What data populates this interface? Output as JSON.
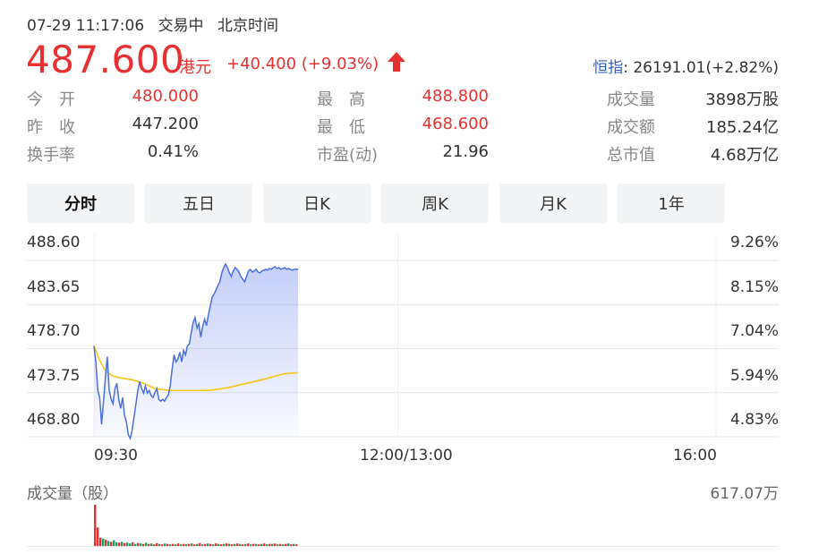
{
  "status": {
    "datetime": "07-29 11:17:06",
    "state": "交易中",
    "tz": "北京时间"
  },
  "quote": {
    "price": "487.600",
    "currency": "港元",
    "change": "+40.400 (+9.03%)",
    "direction": "up"
  },
  "index": {
    "name": "恒指",
    "value": ": 26191.01(+2.82%)"
  },
  "stats": {
    "open_label": "今　开",
    "open": "480.000",
    "prev_label": "昨　收",
    "prev": "447.200",
    "turnover_label": "换手率",
    "turnover": "0.41%",
    "high_label": "最　高",
    "high": "488.800",
    "low_label": "最　低",
    "low": "468.600",
    "pe_label": "市盈(动)",
    "pe": "21.96",
    "vol_label": "成交量",
    "vol": "3898万股",
    "amt_label": "成交额",
    "amt": "185.24亿",
    "cap_label": "总市值",
    "cap": "4.68万亿"
  },
  "tabs": [
    "分时",
    "五日",
    "日K",
    "周K",
    "月K",
    "1年"
  ],
  "active_tab": 0,
  "colors": {
    "up": "#e93030",
    "down": "#1a9e6a",
    "price_line": "#4a6fe0",
    "avg_line": "#f5c518"
  },
  "chart_data": {
    "type": "line",
    "title": "",
    "y_left_ticks": [
      "488.60",
      "483.65",
      "478.70",
      "473.75",
      "468.80"
    ],
    "y_right_ticks": [
      "9.26%",
      "8.15%",
      "7.04%",
      "5.94%",
      "4.83%"
    ],
    "x_ticks": [
      "09:30",
      "12:00/13:00",
      "16:00"
    ],
    "ylim": [
      468.8,
      488.6
    ],
    "session_minutes": 330,
    "series": [
      {
        "key": "price",
        "minutes": [
          0,
          1,
          2,
          3,
          4,
          5,
          6,
          7,
          8,
          9,
          10,
          11,
          12,
          13,
          14,
          15,
          16,
          17,
          18,
          19,
          20,
          21,
          22,
          23,
          24,
          25,
          26,
          27,
          28,
          29,
          30,
          31,
          32,
          33,
          34,
          35,
          36,
          37,
          38,
          39,
          40,
          41,
          42,
          43,
          44,
          45,
          46,
          47,
          48,
          49,
          50,
          51,
          52,
          53,
          54,
          55,
          56,
          57,
          58,
          59,
          60,
          61,
          62,
          63,
          64,
          65,
          66,
          67,
          68,
          69,
          70,
          71,
          72,
          73,
          74,
          75,
          76,
          77,
          78,
          79,
          80,
          81,
          82,
          83,
          84,
          85,
          86,
          87,
          88,
          89,
          90,
          91,
          92,
          93,
          94,
          95,
          96,
          97,
          98,
          99,
          100,
          101,
          102,
          103,
          104,
          105,
          106,
          107
        ],
        "values": [
          479.0,
          477.2,
          474.0,
          473.2,
          470.2,
          472.8,
          475.5,
          477.8,
          474.0,
          473.0,
          472.5,
          474.2,
          474.8,
          473.0,
          472.0,
          473.2,
          471.2,
          470.5,
          469.0,
          468.6,
          469.5,
          471.0,
          472.5,
          474.0,
          475.0,
          474.2,
          473.7,
          474.5,
          473.7,
          474.0,
          473.4,
          473.2,
          473.8,
          474.2,
          473.0,
          472.8,
          473.0,
          472.8,
          473.2,
          473.5,
          474.5,
          476.5,
          478.0,
          477.2,
          477.5,
          478.3,
          477.2,
          478.5,
          478.0,
          479.0,
          479.2,
          480.5,
          481.6,
          482.2,
          481.0,
          481.5,
          480.0,
          481.2,
          482.0,
          481.3,
          482.5,
          483.5,
          484.5,
          484.8,
          485.3,
          485.8,
          486.2,
          487.2,
          487.8,
          488.2,
          487.8,
          487.2,
          486.8,
          487.4,
          487.8,
          487.6,
          487.3,
          486.8,
          486.5,
          486.2,
          486.8,
          487.4,
          487.6,
          487.3,
          487.4,
          487.6,
          487.3,
          487.2,
          487.4,
          487.5,
          487.6,
          487.5,
          487.7,
          487.6,
          487.8,
          487.9,
          487.7,
          487.8,
          487.6,
          487.7,
          487.8,
          487.6,
          487.7,
          487.6,
          487.5,
          487.6,
          487.6,
          487.6
        ]
      },
      {
        "key": "avg",
        "minutes": [
          0,
          3,
          6,
          10,
          14,
          20,
          26,
          32,
          40,
          50,
          60,
          70,
          80,
          90,
          100,
          107
        ],
        "values": [
          479.0,
          477.4,
          476.2,
          475.6,
          475.4,
          475.2,
          474.8,
          474.2,
          474.0,
          474.0,
          474.0,
          474.3,
          474.8,
          475.3,
          475.9,
          476.0
        ]
      }
    ]
  },
  "volume": {
    "label": "成交量（股）",
    "max_label": "617.07万",
    "bars": [
      1.0,
      0.45,
      0.2,
      0.18,
      0.15,
      0.12,
      0.1,
      0.14,
      0.09,
      0.08,
      0.1,
      0.07,
      0.08,
      0.06,
      0.09,
      0.05,
      0.07,
      0.06,
      0.05,
      0.08,
      0.05,
      0.06,
      0.04,
      0.07,
      0.05,
      0.04,
      0.06,
      0.05,
      0.04,
      0.05,
      0.04,
      0.06,
      0.04,
      0.05,
      0.04,
      0.05,
      0.06,
      0.04,
      0.05,
      0.07,
      0.04,
      0.05,
      0.06,
      0.05,
      0.04,
      0.06,
      0.05,
      0.04,
      0.05,
      0.06,
      0.05,
      0.04,
      0.05,
      0.06,
      0.05,
      0.04,
      0.05,
      0.06,
      0.04,
      0.05,
      0.05,
      0.04,
      0.05,
      0.06,
      0.04,
      0.05,
      0.05,
      0.06,
      0.04,
      0.05,
      0.04,
      0.05,
      0.06,
      0.04,
      0.05,
      0.04
    ],
    "bar_dirs": [
      "up",
      "up",
      "up",
      "down",
      "up",
      "down",
      "up",
      "down",
      "down",
      "up",
      "down",
      "up",
      "down",
      "down",
      "up",
      "down",
      "up",
      "down",
      "up",
      "down",
      "up",
      "down",
      "up",
      "up",
      "down",
      "up",
      "down",
      "up",
      "down",
      "up",
      "down",
      "up",
      "down",
      "up",
      "down",
      "up",
      "down",
      "up",
      "down",
      "up",
      "down",
      "up",
      "down",
      "up",
      "down",
      "up",
      "down",
      "up",
      "down",
      "up",
      "down",
      "up",
      "down",
      "up",
      "down",
      "up",
      "down",
      "up",
      "down",
      "up",
      "down",
      "up",
      "down",
      "up",
      "down",
      "up",
      "down",
      "up",
      "down",
      "up",
      "down",
      "up",
      "down",
      "up",
      "down",
      "up"
    ]
  }
}
